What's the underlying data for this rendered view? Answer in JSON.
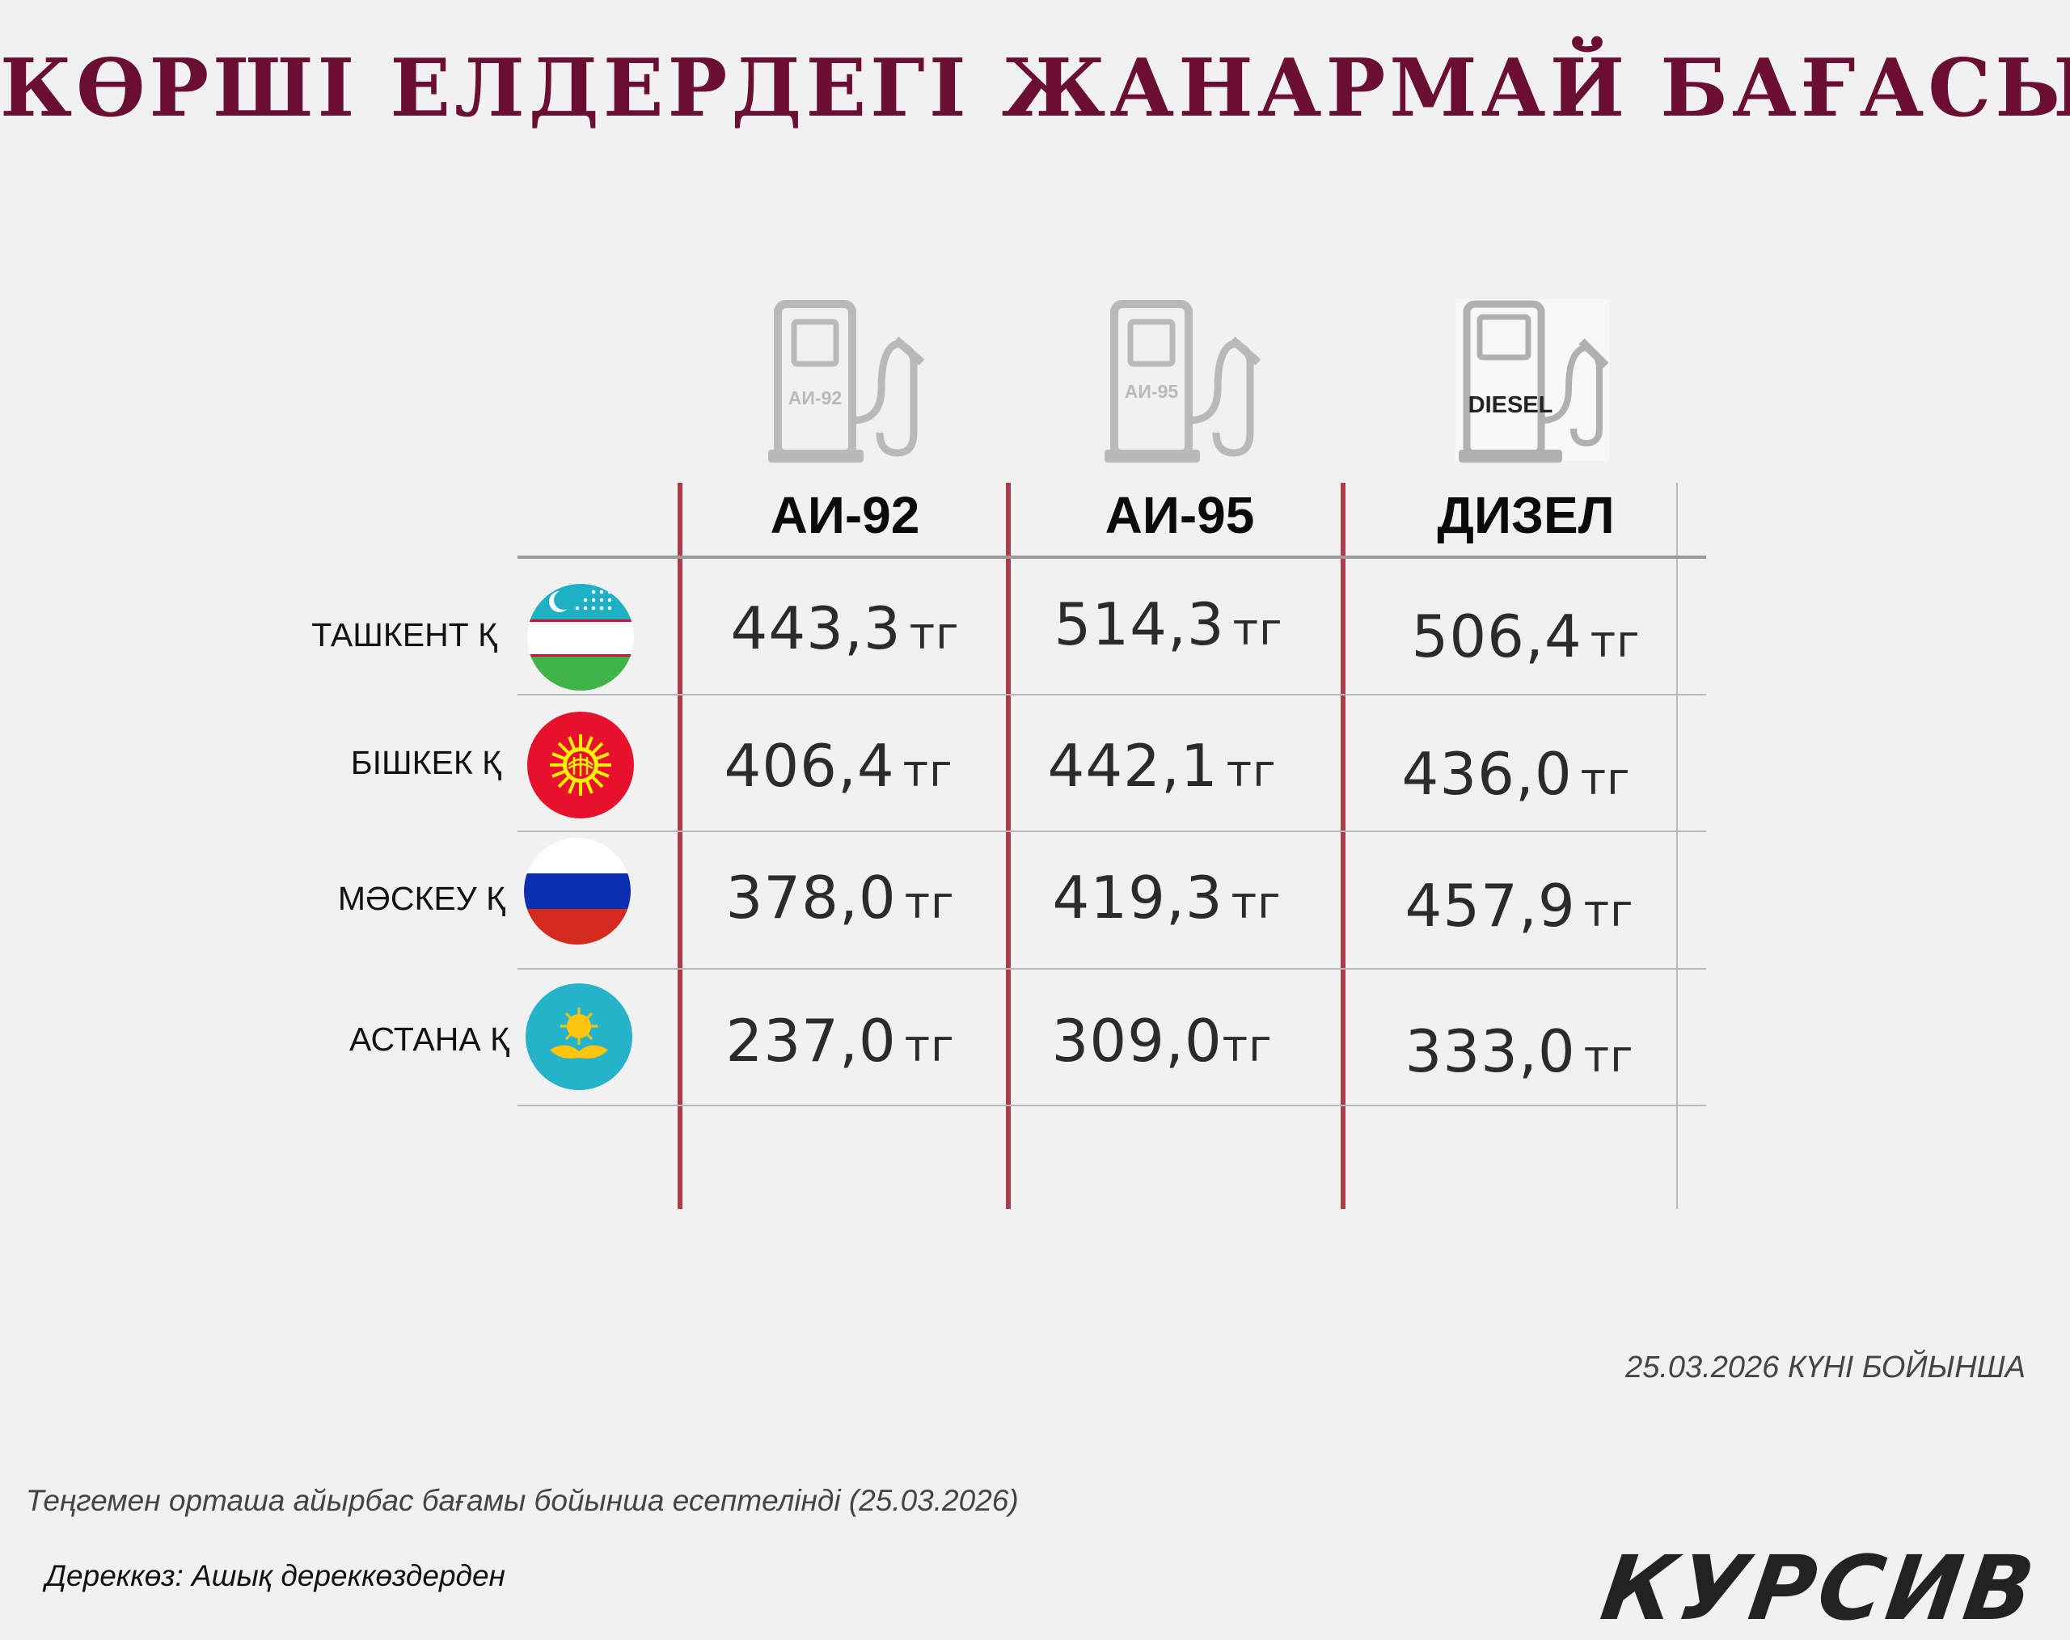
{
  "title": "КӨРШІ ЕЛДЕРДЕГІ ЖАНАРМАЙ БАҒАСЫ",
  "pump_icons": [
    {
      "name": "fuel-pump-ai92-icon",
      "label": "АИ-92"
    },
    {
      "name": "fuel-pump-ai95-icon",
      "label": "АИ-95"
    },
    {
      "name": "fuel-pump-diesel-icon",
      "label": "DIESEL"
    }
  ],
  "columns": [
    "АИ-92",
    "АИ-95",
    "ДИЗЕЛ"
  ],
  "rows": [
    {
      "city": "ТАШКЕНТ Қ",
      "flag": "uzbekistan-flag-icon",
      "prices": [
        "443,3",
        "514,3",
        "506,4"
      ]
    },
    {
      "city": "БІШКЕК Қ",
      "flag": "kyrgyzstan-flag-icon",
      "prices": [
        "406,4",
        "442,1",
        "436,0"
      ]
    },
    {
      "city": "МӘСКЕУ Қ",
      "flag": "russia-flag-icon",
      "prices": [
        "378,0",
        "419,3",
        "457,9"
      ]
    },
    {
      "city": "АСТАНА Қ",
      "flag": "kazakhstan-flag-icon",
      "prices": [
        "237,0",
        "309,0",
        "333,0"
      ]
    }
  ],
  "unit": "тг",
  "date_note": "25.03.2026 КҮНІ БОЙЫНША",
  "calc_note": "Теңгемен орташа айырбас бағамы бойынша есептелінді (25.03.2026)",
  "source_note": "Дереккөз: Ашық дереккөздерден",
  "logo": "КУРСИВ",
  "colors": {
    "title": "#6b0e34",
    "column_divider": "#a93d4b",
    "pump_icon": "#b9b9b9",
    "background": "#f1f1f1"
  }
}
